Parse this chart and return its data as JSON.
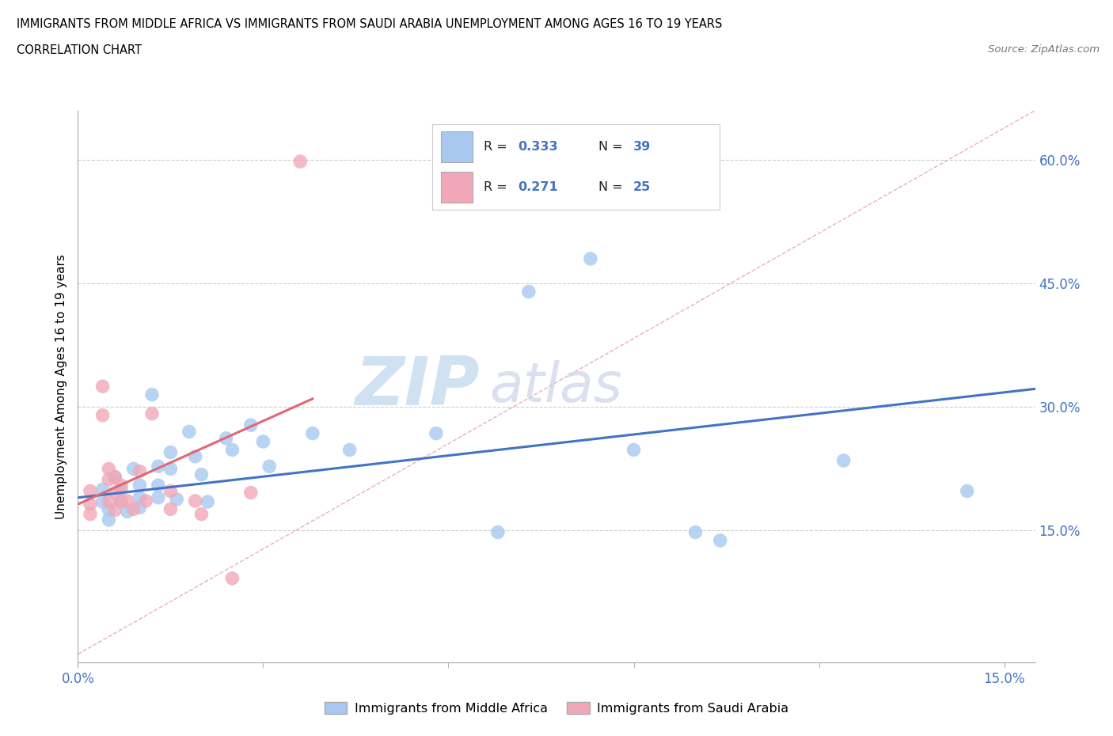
{
  "title_line1": "IMMIGRANTS FROM MIDDLE AFRICA VS IMMIGRANTS FROM SAUDI ARABIA UNEMPLOYMENT AMONG AGES 16 TO 19 YEARS",
  "title_line2": "CORRELATION CHART",
  "source_text": "Source: ZipAtlas.com",
  "ylabel": "Unemployment Among Ages 16 to 19 years",
  "xlim": [
    0.0,
    0.155
  ],
  "ylim": [
    -0.01,
    0.66
  ],
  "ytick_positions": [
    0.15,
    0.3,
    0.45,
    0.6
  ],
  "ytick_labels": [
    "15.0%",
    "30.0%",
    "45.0%",
    "60.0%"
  ],
  "xtick_positions": [
    0.0,
    0.15
  ],
  "xtick_labels": [
    "0.0%",
    "15.0%"
  ],
  "color_blue": "#a8c8f0",
  "color_pink": "#f0a8b8",
  "color_blue_line": "#4472c4",
  "color_pink_line": "#e06878",
  "color_diag_line": "#e8b0b8",
  "scatter_blue": [
    [
      0.004,
      0.2
    ],
    [
      0.004,
      0.185
    ],
    [
      0.005,
      0.175
    ],
    [
      0.005,
      0.163
    ],
    [
      0.006,
      0.215
    ],
    [
      0.007,
      0.2
    ],
    [
      0.007,
      0.185
    ],
    [
      0.008,
      0.173
    ],
    [
      0.009,
      0.225
    ],
    [
      0.01,
      0.205
    ],
    [
      0.01,
      0.19
    ],
    [
      0.01,
      0.178
    ],
    [
      0.012,
      0.315
    ],
    [
      0.013,
      0.228
    ],
    [
      0.013,
      0.205
    ],
    [
      0.013,
      0.19
    ],
    [
      0.015,
      0.245
    ],
    [
      0.015,
      0.225
    ],
    [
      0.016,
      0.188
    ],
    [
      0.018,
      0.27
    ],
    [
      0.019,
      0.24
    ],
    [
      0.02,
      0.218
    ],
    [
      0.021,
      0.185
    ],
    [
      0.024,
      0.262
    ],
    [
      0.025,
      0.248
    ],
    [
      0.028,
      0.278
    ],
    [
      0.03,
      0.258
    ],
    [
      0.031,
      0.228
    ],
    [
      0.038,
      0.268
    ],
    [
      0.044,
      0.248
    ],
    [
      0.058,
      0.268
    ],
    [
      0.068,
      0.148
    ],
    [
      0.073,
      0.44
    ],
    [
      0.083,
      0.48
    ],
    [
      0.09,
      0.248
    ],
    [
      0.1,
      0.148
    ],
    [
      0.104,
      0.138
    ],
    [
      0.124,
      0.235
    ],
    [
      0.144,
      0.198
    ]
  ],
  "scatter_pink": [
    [
      0.002,
      0.198
    ],
    [
      0.002,
      0.182
    ],
    [
      0.002,
      0.17
    ],
    [
      0.004,
      0.325
    ],
    [
      0.004,
      0.29
    ],
    [
      0.005,
      0.225
    ],
    [
      0.005,
      0.212
    ],
    [
      0.005,
      0.185
    ],
    [
      0.006,
      0.175
    ],
    [
      0.006,
      0.215
    ],
    [
      0.006,
      0.196
    ],
    [
      0.007,
      0.205
    ],
    [
      0.007,
      0.186
    ],
    [
      0.008,
      0.186
    ],
    [
      0.009,
      0.176
    ],
    [
      0.01,
      0.222
    ],
    [
      0.011,
      0.186
    ],
    [
      0.012,
      0.292
    ],
    [
      0.015,
      0.198
    ],
    [
      0.015,
      0.176
    ],
    [
      0.019,
      0.186
    ],
    [
      0.02,
      0.17
    ],
    [
      0.025,
      0.092
    ],
    [
      0.028,
      0.196
    ],
    [
      0.036,
      0.598
    ]
  ],
  "blue_line_x": [
    0.0,
    0.155
  ],
  "blue_line_y": [
    0.19,
    0.322
  ],
  "pink_line_x": [
    0.0,
    0.038
  ],
  "pink_line_y": [
    0.182,
    0.31
  ],
  "diag_line_x": [
    0.0,
    0.155
  ],
  "diag_line_y": [
    0.0,
    0.66
  ]
}
